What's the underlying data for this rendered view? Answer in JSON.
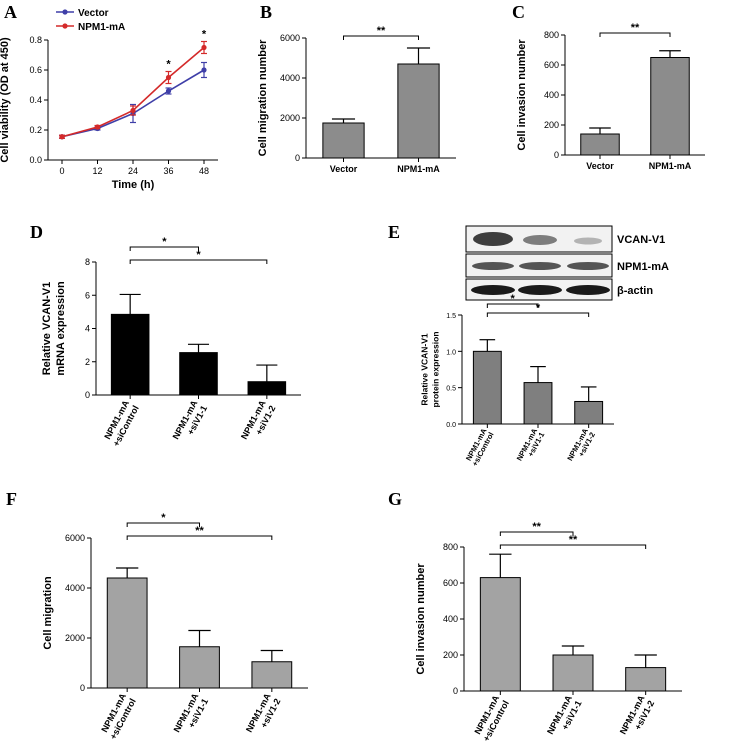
{
  "panels": [
    "A",
    "B",
    "C",
    "D",
    "E",
    "F",
    "G"
  ],
  "blot": {
    "labels": [
      "VCAN-V1",
      "NPM1-mA",
      "β-actin"
    ]
  },
  "chart_data": [
    {
      "id": "A",
      "type": "line",
      "xlabel": "Time (h)",
      "ylabel": "Cell viability (OD at 450)",
      "x": [
        0,
        12,
        24,
        36,
        48
      ],
      "xlim": [
        0,
        48
      ],
      "ylim": [
        0,
        0.8
      ],
      "xticks": [
        "0",
        "12",
        "24",
        "36",
        "48"
      ],
      "yticks": [
        "0.0",
        "0.2",
        "0.4",
        "0.6",
        "0.8"
      ],
      "series": [
        {
          "name": "Vector",
          "color": "#3f3fa8",
          "values": [
            0.155,
            0.21,
            0.31,
            0.46,
            0.6
          ],
          "errors": [
            0.01,
            0.01,
            0.06,
            0.02,
            0.05
          ]
        },
        {
          "name": "NPM1-mA",
          "color": "#d42a2a",
          "values": [
            0.155,
            0.22,
            0.33,
            0.55,
            0.75
          ],
          "errors": [
            0.01,
            0.01,
            0.03,
            0.04,
            0.04
          ]
        }
      ],
      "annotations": [
        {
          "x": 36,
          "text": "*"
        },
        {
          "x": 48,
          "text": "*"
        }
      ],
      "legend": "top-left"
    },
    {
      "id": "B",
      "type": "bar",
      "categories": [
        "Vector",
        "NPM1-mA"
      ],
      "values": [
        1750,
        4700
      ],
      "errors": [
        200,
        800
      ],
      "ylabel": "Cell migration number",
      "ylim": [
        0,
        6000
      ],
      "yticks": [
        "0",
        "2000",
        "4000",
        "6000"
      ],
      "color": "#8c8c8c",
      "brackets": [
        {
          "from": 0,
          "to": 1,
          "text": "**"
        }
      ]
    },
    {
      "id": "C",
      "type": "bar",
      "categories": [
        "Vector",
        "NPM1-mA"
      ],
      "values": [
        140,
        650
      ],
      "errors": [
        40,
        45
      ],
      "ylabel": "Cell invasion number",
      "ylim": [
        0,
        800
      ],
      "yticks": [
        "0",
        "200",
        "400",
        "600",
        "800"
      ],
      "color": "#8c8c8c",
      "brackets": [
        {
          "from": 0,
          "to": 1,
          "text": "**"
        }
      ]
    },
    {
      "id": "D",
      "type": "bar",
      "categories": [
        "NPM1-mA +siControl",
        "NPM1-mA +siV1-1",
        "NPM1-mA +siV1-2"
      ],
      "values": [
        4.85,
        2.55,
        0.8
      ],
      "errors": [
        1.2,
        0.5,
        1.0
      ],
      "ylabel": "Relative VCAN-V1 mRNA expression",
      "ylim": [
        0,
        8
      ],
      "yticks": [
        "0",
        "2",
        "4",
        "6",
        "8"
      ],
      "color": "#000000",
      "brackets": [
        {
          "from": 0,
          "to": 1,
          "text": "*"
        },
        {
          "from": 0,
          "to": 2,
          "text": "*"
        }
      ]
    },
    {
      "id": "E",
      "type": "bar",
      "categories": [
        "NPM1-mA +siControl",
        "NPM1-mA +siV1-1",
        "NPM1-mA +siV1-2"
      ],
      "values": [
        1.0,
        0.57,
        0.31
      ],
      "errors": [
        0.16,
        0.22,
        0.2
      ],
      "ylabel": "Relative VCAN-V1 protein expression",
      "ylim": [
        0,
        1.5
      ],
      "yticks": [
        "0.0",
        "0.5",
        "1.0",
        "1.5"
      ],
      "color": "#7f7f7f",
      "brackets": [
        {
          "from": 0,
          "to": 1,
          "text": "*"
        },
        {
          "from": 0,
          "to": 2,
          "text": "*"
        }
      ]
    },
    {
      "id": "F",
      "type": "bar",
      "categories": [
        "NPM1-mA +siControl",
        "NPM1-mA +siV1-1",
        "NPM1-mA +siV1-2"
      ],
      "values": [
        4400,
        1650,
        1050
      ],
      "errors": [
        400,
        650,
        450
      ],
      "ylabel": "Cell migration",
      "ylim": [
        0,
        6000
      ],
      "yticks": [
        "0",
        "2000",
        "4000",
        "6000"
      ],
      "color": "#a3a3a3",
      "brackets": [
        {
          "from": 0,
          "to": 1,
          "text": "*"
        },
        {
          "from": 0,
          "to": 2,
          "text": "**"
        }
      ]
    },
    {
      "id": "G",
      "type": "bar",
      "categories": [
        "NPM1-mA +siControl",
        "NPM1-mA +siV1-1",
        "NPM1-mA +siV1-2"
      ],
      "values": [
        630,
        200,
        130
      ],
      "errors": [
        130,
        50,
        70
      ],
      "ylabel": "Cell invasion number",
      "ylim": [
        0,
        800
      ],
      "yticks": [
        "0",
        "200",
        "400",
        "600",
        "800"
      ],
      "color": "#a3a3a3",
      "brackets": [
        {
          "from": 0,
          "to": 1,
          "text": "**"
        },
        {
          "from": 0,
          "to": 2,
          "text": "**"
        }
      ]
    }
  ]
}
